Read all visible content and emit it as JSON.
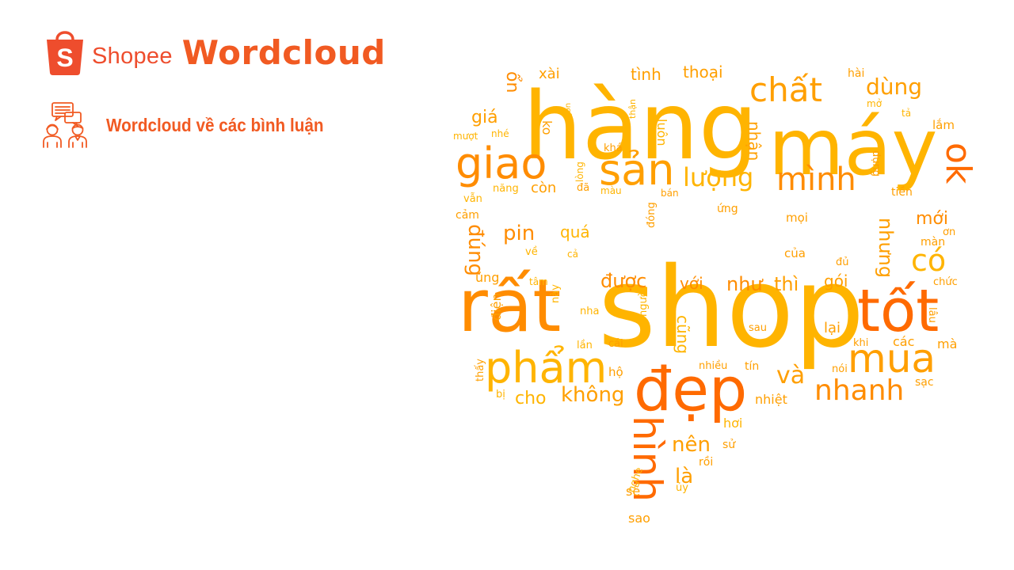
{
  "header": {
    "brand_text": "Shopee",
    "bag_letter": "S",
    "title": "Wordcloud"
  },
  "section": {
    "icon": "people-chat-icon",
    "label": "Wordcloud về các bình luận"
  },
  "colors": {
    "brand": "#ee4d2d",
    "accent": "#f15a22",
    "cloud_palette": [
      "#ffb400",
      "#ff9f00",
      "#ff8c00",
      "#ff6a00",
      "#f25c05"
    ]
  },
  "wordcloud": {
    "shape": "speech-bubble",
    "words": [
      {
        "text": "shop"
      },
      {
        "text": "hàng"
      },
      {
        "text": "máy"
      },
      {
        "text": "rất"
      },
      {
        "text": "tốt"
      },
      {
        "text": "đẹp"
      },
      {
        "text": "sản"
      },
      {
        "text": "giao"
      },
      {
        "text": "chất"
      },
      {
        "text": "phẩm"
      },
      {
        "text": "mua"
      },
      {
        "text": "ok"
      },
      {
        "text": "mình"
      },
      {
        "text": "lượng"
      },
      {
        "text": "nhanh"
      },
      {
        "text": "hình"
      },
      {
        "text": "có"
      },
      {
        "text": "dùng"
      },
      {
        "text": "và"
      },
      {
        "text": "không"
      },
      {
        "text": "đúng"
      },
      {
        "text": "pin"
      },
      {
        "text": "được"
      },
      {
        "text": "như"
      },
      {
        "text": "thì"
      },
      {
        "text": "nhưng"
      },
      {
        "text": "mới"
      },
      {
        "text": "với"
      },
      {
        "text": "gói"
      },
      {
        "text": "quá"
      },
      {
        "text": "cũng"
      },
      {
        "text": "nên"
      },
      {
        "text": "là"
      },
      {
        "text": "cho"
      },
      {
        "text": "còn"
      },
      {
        "text": "nhận"
      },
      {
        "text": "thoại"
      },
      {
        "text": "tình"
      },
      {
        "text": "giá"
      },
      {
        "text": "ổn"
      },
      {
        "text": "xài"
      },
      {
        "text": "ko"
      },
      {
        "text": "luôn"
      },
      {
        "text": "lắm"
      },
      {
        "text": "tiền"
      },
      {
        "text": "dụng"
      },
      {
        "text": "mọi"
      },
      {
        "text": "ứng"
      },
      {
        "text": "của"
      },
      {
        "text": "màn"
      },
      {
        "text": "ơn"
      },
      {
        "text": "chức"
      },
      {
        "text": "đủ"
      },
      {
        "text": "lại"
      },
      {
        "text": "các"
      },
      {
        "text": "mà"
      },
      {
        "text": "khi"
      },
      {
        "text": "lâu"
      },
      {
        "text": "sau"
      },
      {
        "text": "sạc"
      },
      {
        "text": "nói"
      },
      {
        "text": "tín"
      },
      {
        "text": "nhiều"
      },
      {
        "text": "nhiệt"
      },
      {
        "text": "hơi"
      },
      {
        "text": "sử"
      },
      {
        "text": "rồi"
      },
      {
        "text": "ủy"
      },
      {
        "text": "sẽ"
      },
      {
        "text": "sao"
      },
      {
        "text": "nghe"
      },
      {
        "text": "hộ"
      },
      {
        "text": "cái"
      },
      {
        "text": "người"
      },
      {
        "text": "lần"
      },
      {
        "text": "này"
      },
      {
        "text": "nha"
      },
      {
        "text": "tâm"
      },
      {
        "text": "điện"
      },
      {
        "text": "thấy"
      },
      {
        "text": "bị"
      },
      {
        "text": "ủng"
      },
      {
        "text": "về"
      },
      {
        "text": "cả"
      },
      {
        "text": "cảm"
      },
      {
        "text": "vẫn"
      },
      {
        "text": "năng"
      },
      {
        "text": "đã"
      },
      {
        "text": "màu"
      },
      {
        "text": "bán"
      },
      {
        "text": "đóng"
      },
      {
        "text": "khá"
      },
      {
        "text": "lòng"
      },
      {
        "text": "mượt"
      },
      {
        "text": "nhé"
      },
      {
        "text": "ngon"
      },
      {
        "text": "thận"
      },
      {
        "text": "hài"
      },
      {
        "text": "mở"
      },
      {
        "text": "tả"
      }
    ]
  }
}
